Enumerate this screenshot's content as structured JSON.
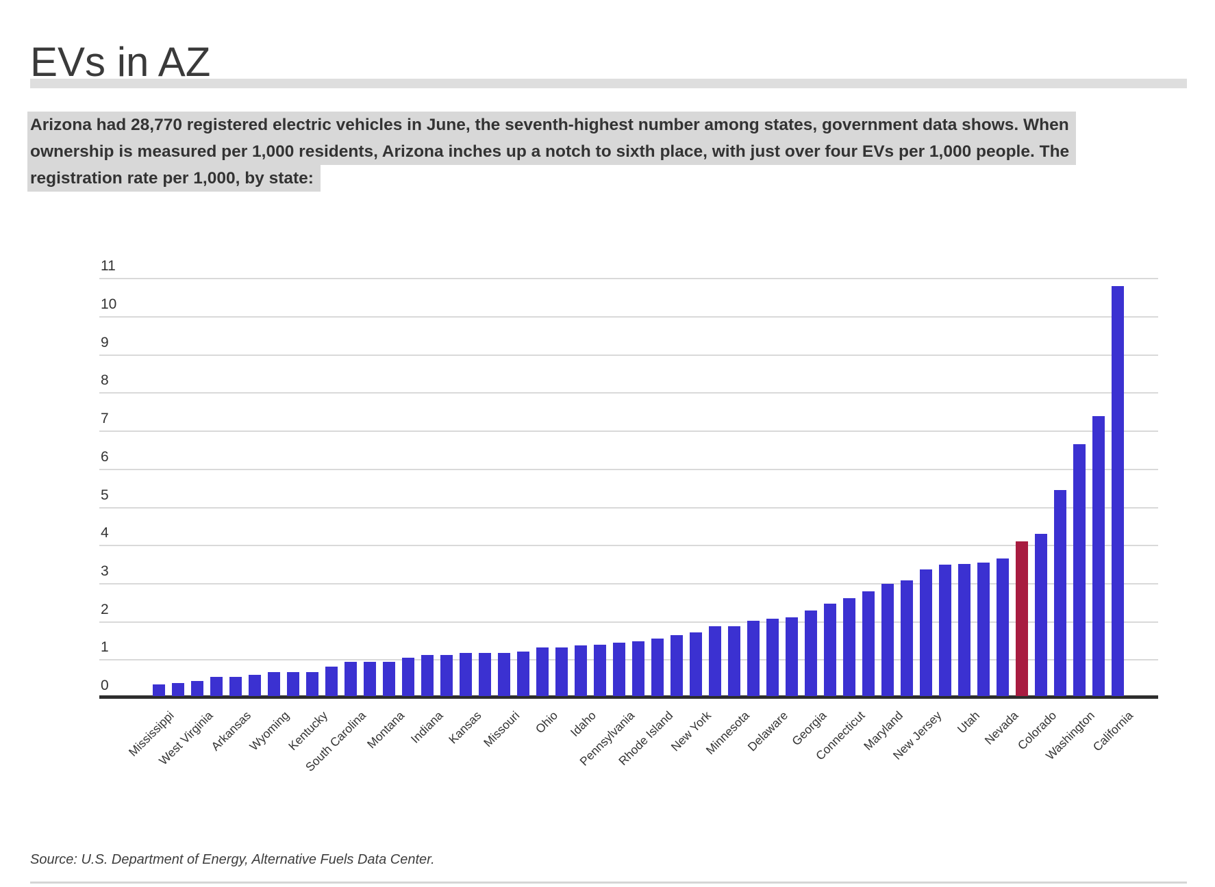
{
  "page": {
    "title": "EVs in AZ",
    "intro_lines": [
      "Arizona had 28,770 registered electric vehicles in June, the seventh-highest number among states, government data shows. When",
      "ownership is measured per 1,000 residents, Arizona inches up a notch to sixth place, with just over four EVs per 1,000 people. The",
      "registration rate per 1,000, by state:"
    ],
    "source": "Source: U.S. Department of Energy, Alternative Fuels Data Center."
  },
  "colors": {
    "bar": "#3b31d1",
    "highlight_bar": "#a81c40",
    "gridline": "#d9d9d9",
    "axis": "#2d2d2d",
    "text": "#333333",
    "intro_highlight_bg": "#d8d8d8",
    "divider": "#dedede"
  },
  "chart_data": {
    "type": "bar",
    "title": "",
    "xlabel": "",
    "ylabel": "",
    "ylim": [
      0,
      11
    ],
    "yticks": [
      0,
      1,
      2,
      3,
      4,
      5,
      6,
      7,
      8,
      9,
      10,
      11
    ],
    "grid": true,
    "legend": "none",
    "highlighted_bar_state": "Arizona",
    "bars": [
      {
        "label": "Mississippi",
        "value": 0.3,
        "highlight": false
      },
      {
        "label": "",
        "value": 0.35,
        "highlight": false
      },
      {
        "label": "West Virginia",
        "value": 0.4,
        "highlight": false
      },
      {
        "label": "",
        "value": 0.5,
        "highlight": false
      },
      {
        "label": "Arkansas",
        "value": 0.5,
        "highlight": false
      },
      {
        "label": "",
        "value": 0.55,
        "highlight": false
      },
      {
        "label": "Wyoming",
        "value": 0.62,
        "highlight": false
      },
      {
        "label": "",
        "value": 0.62,
        "highlight": false
      },
      {
        "label": "Kentucky",
        "value": 0.62,
        "highlight": false
      },
      {
        "label": "",
        "value": 0.77,
        "highlight": false
      },
      {
        "label": "South Carolina",
        "value": 0.9,
        "highlight": false
      },
      {
        "label": "",
        "value": 0.9,
        "highlight": false
      },
      {
        "label": "Montana",
        "value": 0.9,
        "highlight": false
      },
      {
        "label": "",
        "value": 1.0,
        "highlight": false
      },
      {
        "label": "Indiana",
        "value": 1.08,
        "highlight": false
      },
      {
        "label": "",
        "value": 1.08,
        "highlight": false
      },
      {
        "label": "Kansas",
        "value": 1.13,
        "highlight": false
      },
      {
        "label": "",
        "value": 1.13,
        "highlight": false
      },
      {
        "label": "Missouri",
        "value": 1.14,
        "highlight": false
      },
      {
        "label": "",
        "value": 1.17,
        "highlight": false
      },
      {
        "label": "Ohio",
        "value": 1.28,
        "highlight": false
      },
      {
        "label": "",
        "value": 1.28,
        "highlight": false
      },
      {
        "label": "Idaho",
        "value": 1.32,
        "highlight": false
      },
      {
        "label": "",
        "value": 1.35,
        "highlight": false
      },
      {
        "label": "Pennsylvania",
        "value": 1.4,
        "highlight": false
      },
      {
        "label": "",
        "value": 1.43,
        "highlight": false
      },
      {
        "label": "Rhode Island",
        "value": 1.5,
        "highlight": false
      },
      {
        "label": "",
        "value": 1.6,
        "highlight": false
      },
      {
        "label": "New York",
        "value": 1.67,
        "highlight": false
      },
      {
        "label": "",
        "value": 1.83,
        "highlight": false
      },
      {
        "label": "Minnesota",
        "value": 1.84,
        "highlight": false
      },
      {
        "label": "",
        "value": 1.98,
        "highlight": false
      },
      {
        "label": "Delaware",
        "value": 2.03,
        "highlight": false
      },
      {
        "label": "",
        "value": 2.06,
        "highlight": false
      },
      {
        "label": "Georgia",
        "value": 2.24,
        "highlight": false
      },
      {
        "label": "",
        "value": 2.42,
        "highlight": false
      },
      {
        "label": "Connecticut",
        "value": 2.56,
        "highlight": false
      },
      {
        "label": "",
        "value": 2.74,
        "highlight": false
      },
      {
        "label": "Maryland",
        "value": 2.95,
        "highlight": false
      },
      {
        "label": "",
        "value": 3.03,
        "highlight": false
      },
      {
        "label": "New Jersey",
        "value": 3.32,
        "highlight": false
      },
      {
        "label": "",
        "value": 3.45,
        "highlight": false
      },
      {
        "label": "Utah",
        "value": 3.46,
        "highlight": false
      },
      {
        "label": "",
        "value": 3.5,
        "highlight": false
      },
      {
        "label": "Nevada",
        "value": 3.6,
        "highlight": false
      },
      {
        "label": "",
        "value": 4.05,
        "highlight": true
      },
      {
        "label": "Colorado",
        "value": 4.25,
        "highlight": false
      },
      {
        "label": "",
        "value": 5.4,
        "highlight": false
      },
      {
        "label": "Washington",
        "value": 6.6,
        "highlight": false
      },
      {
        "label": "",
        "value": 7.35,
        "highlight": false
      },
      {
        "label": "California",
        "value": 10.75,
        "highlight": false
      }
    ]
  }
}
